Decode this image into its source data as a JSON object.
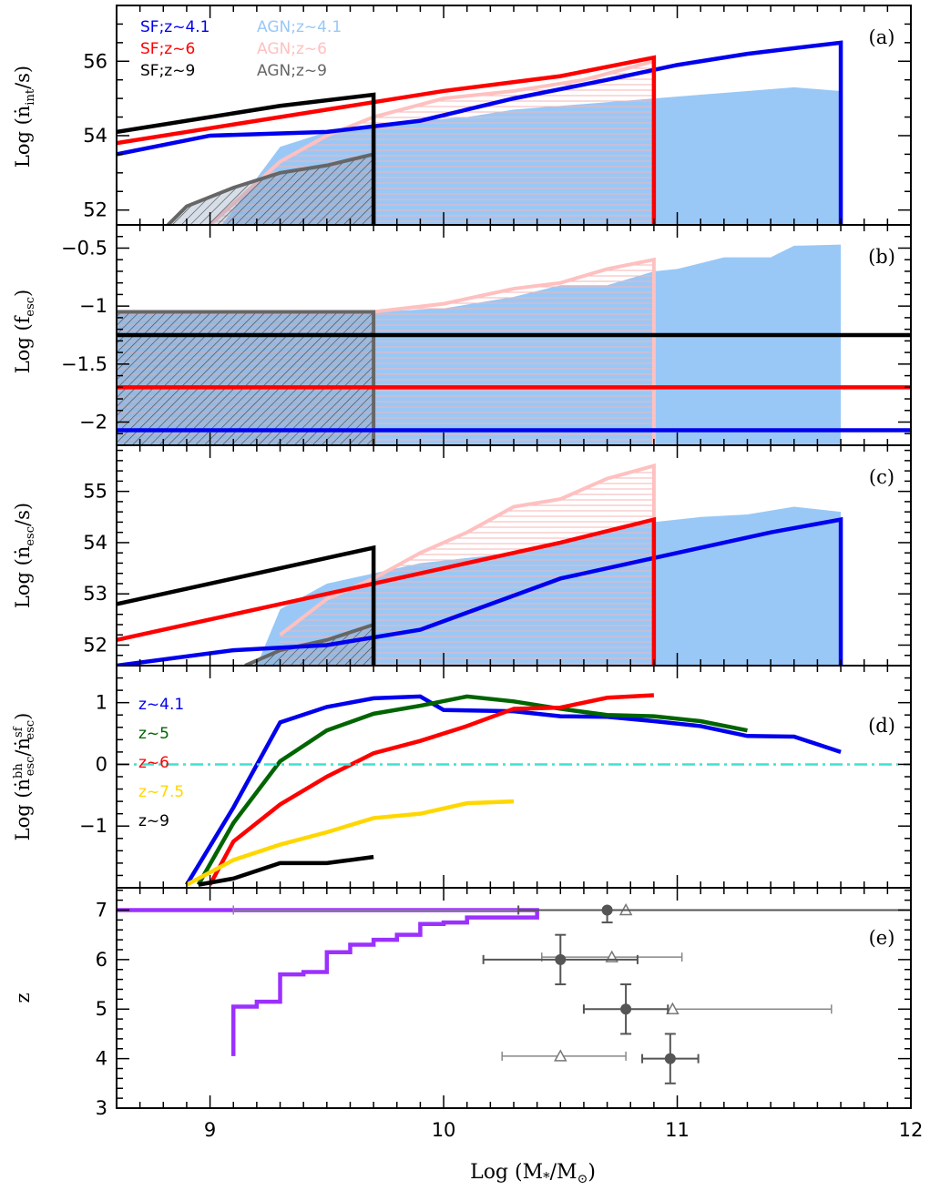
{
  "chart_data": [
    {
      "panel": "(a)",
      "type": "line",
      "ylabel": "Log (ṅint/s)",
      "xlim": [
        8.6,
        12
      ],
      "ylim": [
        51.6,
        57.5
      ],
      "yticks": [
        52,
        54,
        56
      ],
      "series": [
        {
          "name": "SF;z~4.1",
          "kind": "line",
          "color": "#0000ee",
          "x": [
            8.6,
            9.0,
            9.5,
            9.9,
            10.3,
            10.7,
            11.0,
            11.3,
            11.7,
            11.7
          ],
          "y": [
            53.5,
            54.0,
            54.1,
            54.4,
            55.0,
            55.5,
            55.9,
            56.2,
            56.5,
            51.6
          ]
        },
        {
          "name": "SF;z~6",
          "kind": "line",
          "color": "#ff0000",
          "x": [
            8.6,
            9.0,
            9.5,
            10.0,
            10.5,
            10.9,
            10.9
          ],
          "y": [
            53.8,
            54.2,
            54.7,
            55.2,
            55.6,
            56.1,
            51.6
          ]
        },
        {
          "name": "SF;z~9",
          "kind": "line",
          "color": "#000000",
          "x": [
            8.6,
            9.0,
            9.3,
            9.7,
            9.7
          ],
          "y": [
            54.1,
            54.5,
            54.8,
            55.1,
            51.6
          ]
        },
        {
          "name": "AGN;z~4.1",
          "kind": "area",
          "color": "#99c8f6",
          "x": [
            9.05,
            9.3,
            9.5,
            9.7,
            9.9,
            10.1,
            10.3,
            10.5,
            10.7,
            10.9,
            11.1,
            11.3,
            11.5,
            11.7
          ],
          "y": [
            51.6,
            53.7,
            54.1,
            54.2,
            54.4,
            54.5,
            54.7,
            54.8,
            54.9,
            55.0,
            55.1,
            55.2,
            55.3,
            55.2
          ]
        },
        {
          "name": "AGN;z~6",
          "kind": "area-hatched",
          "color": "#ffc0c0",
          "x": [
            9.0,
            9.3,
            9.5,
            9.7,
            10.0,
            10.3,
            10.6,
            10.9
          ],
          "y": [
            51.6,
            53.3,
            54.0,
            54.5,
            55.0,
            55.2,
            55.5,
            56.0
          ]
        },
        {
          "name": "AGN;z~9",
          "kind": "area-hatched",
          "color": "#666666",
          "x": [
            8.82,
            8.9,
            9.1,
            9.3,
            9.5,
            9.7
          ],
          "y": [
            51.6,
            52.1,
            52.6,
            53.0,
            53.2,
            53.5
          ]
        }
      ],
      "legend": [
        {
          "label": "SF;z~4.1",
          "color": "#0000ee"
        },
        {
          "label": "SF;z~6",
          "color": "#ff0000"
        },
        {
          "label": "SF;z~9",
          "color": "#000000"
        },
        {
          "label": "AGN;z~4.1",
          "color": "#99c8f6"
        },
        {
          "label": "AGN;z~6",
          "color": "#ffc0c0"
        },
        {
          "label": "AGN;z~9",
          "color": "#666666"
        }
      ]
    },
    {
      "panel": "(b)",
      "type": "line",
      "ylabel": "Log (fesc)",
      "xlim": [
        8.6,
        12
      ],
      "ylim": [
        -2.2,
        -0.3
      ],
      "yticks": [
        -2,
        -1.5,
        -1,
        -0.5
      ],
      "yticklabels": [
        "−2",
        "−1.5",
        "−1",
        "−0.5"
      ],
      "series": [
        {
          "name": "SF;z~9",
          "kind": "line",
          "color": "#000000",
          "x": [
            8.6,
            12.0
          ],
          "y": [
            -1.25,
            -1.25
          ]
        },
        {
          "name": "SF;z~6",
          "kind": "line",
          "color": "#ff0000",
          "x": [
            8.6,
            12.0
          ],
          "y": [
            -1.7,
            -1.7
          ]
        },
        {
          "name": "SF;z~4.1",
          "kind": "line",
          "color": "#0000ee",
          "x": [
            8.6,
            12.0
          ],
          "y": [
            -2.07,
            -2.07
          ]
        },
        {
          "name": "AGN;z~4.1",
          "kind": "area",
          "color": "#99c8f6",
          "x": [
            8.6,
            9.7,
            10.0,
            10.3,
            10.5,
            10.7,
            10.9,
            11.0,
            11.2,
            11.4,
            11.5,
            11.7
          ],
          "y": [
            -1.05,
            -1.05,
            -1.02,
            -0.92,
            -0.82,
            -0.82,
            -0.7,
            -0.68,
            -0.58,
            -0.58,
            -0.48,
            -0.47
          ]
        },
        {
          "name": "AGN;z~6",
          "kind": "area-hatched",
          "color": "#ffc0c0",
          "x": [
            8.6,
            9.7,
            10.0,
            10.3,
            10.5,
            10.7,
            10.9
          ],
          "y": [
            -1.05,
            -1.05,
            -0.98,
            -0.85,
            -0.8,
            -0.68,
            -0.6
          ]
        },
        {
          "name": "AGN;z~9",
          "kind": "area-hatched",
          "color": "#666666",
          "x": [
            8.6,
            9.7
          ],
          "y": [
            -1.05,
            -1.05
          ]
        }
      ]
    },
    {
      "panel": "(c)",
      "type": "line",
      "ylabel": "Log (ṅesc/s)",
      "xlim": [
        8.6,
        12
      ],
      "ylim": [
        51.6,
        55.9
      ],
      "yticks": [
        52,
        53,
        54,
        55
      ],
      "series": [
        {
          "name": "SF;z~4.1",
          "kind": "line",
          "color": "#0000ee",
          "x": [
            8.6,
            9.1,
            9.5,
            9.9,
            10.2,
            10.5,
            10.8,
            11.1,
            11.4,
            11.7,
            11.7
          ],
          "y": [
            51.6,
            51.9,
            52.0,
            52.3,
            52.8,
            53.3,
            53.6,
            53.9,
            54.2,
            54.45,
            51.6
          ]
        },
        {
          "name": "SF;z~6",
          "kind": "line",
          "color": "#ff0000",
          "x": [
            8.6,
            9.0,
            9.5,
            10.0,
            10.5,
            10.9,
            10.9
          ],
          "y": [
            52.1,
            52.5,
            53.0,
            53.5,
            54.0,
            54.45,
            51.6
          ]
        },
        {
          "name": "SF;z~9",
          "kind": "line",
          "color": "#000000",
          "x": [
            8.6,
            9.0,
            9.4,
            9.7,
            9.7
          ],
          "y": [
            52.8,
            53.2,
            53.6,
            53.9,
            51.6
          ]
        },
        {
          "name": "AGN;z~4.1",
          "kind": "area",
          "color": "#99c8f6",
          "x": [
            9.2,
            9.3,
            9.5,
            9.7,
            9.9,
            10.1,
            10.3,
            10.5,
            10.7,
            10.9,
            11.1,
            11.3,
            11.5,
            11.7
          ],
          "y": [
            51.6,
            52.7,
            53.2,
            53.4,
            53.6,
            53.7,
            53.8,
            54.0,
            54.2,
            54.4,
            54.5,
            54.55,
            54.7,
            54.6
          ]
        },
        {
          "name": "AGN;z~6",
          "kind": "area-hatched",
          "color": "#ffc0c0",
          "x": [
            9.3,
            9.5,
            9.7,
            9.9,
            10.1,
            10.3,
            10.5,
            10.7,
            10.9
          ],
          "y": [
            52.2,
            52.9,
            53.3,
            53.8,
            54.2,
            54.7,
            54.85,
            55.25,
            55.5
          ]
        },
        {
          "name": "AGN;z~9",
          "kind": "area-hatched",
          "color": "#666666",
          "x": [
            9.15,
            9.3,
            9.5,
            9.7
          ],
          "y": [
            51.6,
            51.9,
            52.1,
            52.4
          ]
        }
      ]
    },
    {
      "panel": "(d)",
      "type": "line",
      "ylabel": "Log (ṅbhesc/ṅsfesc)",
      "xlim": [
        8.6,
        12
      ],
      "ylim": [
        -2.0,
        1.6
      ],
      "yticks": [
        -1,
        0,
        1
      ],
      "yticklabels": [
        "−1",
        "0",
        "1"
      ],
      "reference_line": {
        "y": 0,
        "color": "#40e0d0",
        "style": "dash-dot"
      },
      "series": [
        {
          "name": "z~4.1",
          "color": "#0000ee",
          "x": [
            8.9,
            9.1,
            9.3,
            9.5,
            9.7,
            9.9,
            10.0,
            10.3,
            10.5,
            10.7,
            10.9,
            11.1,
            11.3,
            11.5,
            11.7
          ],
          "y": [
            -1.95,
            -0.7,
            0.68,
            0.93,
            1.07,
            1.1,
            0.88,
            0.86,
            0.78,
            0.77,
            0.7,
            0.62,
            0.46,
            0.45,
            0.2
          ]
        },
        {
          "name": "z~5",
          "color": "#006400",
          "x": [
            8.95,
            9.1,
            9.3,
            9.5,
            9.7,
            9.9,
            10.1,
            10.3,
            10.5,
            10.7,
            10.9,
            11.1,
            11.3
          ],
          "y": [
            -1.95,
            -0.95,
            0.05,
            0.55,
            0.82,
            0.95,
            1.1,
            1.02,
            0.9,
            0.8,
            0.78,
            0.7,
            0.55
          ]
        },
        {
          "name": "z~6",
          "color": "#ff0000",
          "x": [
            9.0,
            9.1,
            9.3,
            9.5,
            9.7,
            9.9,
            10.1,
            10.3,
            10.5,
            10.7,
            10.9
          ],
          "y": [
            -1.95,
            -1.25,
            -0.65,
            -0.2,
            0.18,
            0.38,
            0.62,
            0.9,
            0.92,
            1.08,
            1.12
          ]
        },
        {
          "name": "z~7.5",
          "color": "#ffd700",
          "x": [
            8.9,
            9.0,
            9.1,
            9.3,
            9.5,
            9.7,
            9.9,
            10.1,
            10.3
          ],
          "y": [
            -1.95,
            -1.75,
            -1.55,
            -1.3,
            -1.1,
            -0.87,
            -0.8,
            -0.63,
            -0.6
          ]
        },
        {
          "name": "z~9",
          "color": "#000000",
          "x": [
            8.95,
            9.1,
            9.3,
            9.5,
            9.7
          ],
          "y": [
            -1.95,
            -1.85,
            -1.6,
            -1.6,
            -1.5
          ]
        }
      ],
      "legend": [
        {
          "label": "z~4.1",
          "color": "#0000ee"
        },
        {
          "label": "z~5",
          "color": "#006400"
        },
        {
          "label": "z~6",
          "color": "#ff0000"
        },
        {
          "label": "z~7.5",
          "color": "#ffd700"
        },
        {
          "label": "z~9",
          "color": "#000000"
        }
      ]
    },
    {
      "panel": "(e)",
      "type": "scatter",
      "ylabel": "z",
      "xlabel": "Log (M*/M⊙)",
      "xlim": [
        8.6,
        12
      ],
      "ylim": [
        3,
        7.45
      ],
      "xticks": [
        9,
        10,
        11,
        12
      ],
      "yticks": [
        3,
        4,
        5,
        6,
        7
      ],
      "step_line": {
        "color": "#9b30ff",
        "x": [
          9.1,
          9.1,
          9.2,
          9.2,
          9.3,
          9.3,
          9.4,
          9.4,
          9.5,
          9.5,
          9.6,
          9.6,
          9.7,
          9.7,
          9.8,
          9.8,
          9.9,
          9.9,
          10.0,
          10.0,
          10.1,
          10.1,
          10.4,
          10.4,
          8.6
        ],
        "y": [
          4.05,
          5.05,
          5.05,
          5.15,
          5.15,
          5.7,
          5.7,
          5.75,
          5.75,
          6.15,
          6.15,
          6.3,
          6.3,
          6.4,
          6.4,
          6.5,
          6.5,
          6.72,
          6.72,
          6.75,
          6.75,
          6.85,
          6.85,
          7.0,
          7.0
        ]
      },
      "points_filled": [
        {
          "x": 10.7,
          "y": 7.0,
          "xerr": [
            0.38,
            10
          ],
          "yerr": [
            0.25,
            0
          ]
        },
        {
          "x": 10.5,
          "y": 6.0,
          "xerr": [
            0.33,
            0.33
          ],
          "yerr": [
            0.5,
            0.5
          ]
        },
        {
          "x": 10.78,
          "y": 5.0,
          "xerr": [
            0.18,
            0.18
          ],
          "yerr": [
            0.5,
            0.5
          ]
        },
        {
          "x": 10.97,
          "y": 4.0,
          "xerr": [
            0.12,
            0.12
          ],
          "yerr": [
            0.5,
            0.5
          ]
        }
      ],
      "points_open": [
        {
          "x": 10.78,
          "y": 7.0,
          "xerr": [
            1.68,
            1.22
          ]
        },
        {
          "x": 10.72,
          "y": 6.05,
          "xerr": [
            0.3,
            0.3
          ]
        },
        {
          "x": 10.98,
          "y": 5.0,
          "xerr": [
            0.38,
            0.68
          ]
        },
        {
          "x": 10.5,
          "y": 4.05,
          "xerr": [
            0.25,
            0.28
          ]
        }
      ]
    }
  ],
  "panel_tags": [
    "(a)",
    "(b)",
    "(c)",
    "(d)",
    "(e)"
  ],
  "x_ticklabels": [
    "9",
    "10",
    "11",
    "12"
  ],
  "xlabel": "Log (M*/M⊙)"
}
